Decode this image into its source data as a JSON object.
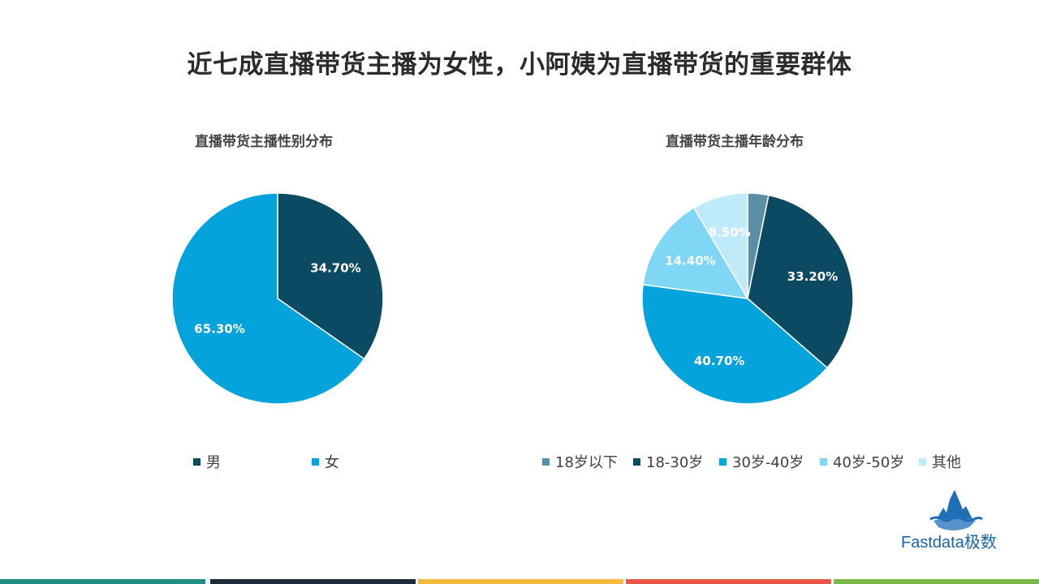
{
  "page": {
    "title": "近七成直播带货主播为女性，小阿姨为直播带货的重要群体"
  },
  "logo": {
    "text": "Fastdata极数",
    "icon": "iceberg-icon"
  },
  "colors": {
    "footer": [
      "#1f8f85",
      "#1e2b3c",
      "#f2b93b",
      "#ea5645",
      "#7ab648"
    ]
  },
  "chart_data": [
    {
      "type": "pie",
      "title": "直播带货主播性别分布",
      "slices": [
        {
          "label": "男",
          "value": 34.7,
          "display": "34.70%",
          "color": "#0c4a63"
        },
        {
          "label": "女",
          "value": 65.3,
          "display": "65.30%",
          "color": "#04a3dc"
        }
      ],
      "legend": [
        "男",
        "女"
      ],
      "legend_position": "bottom"
    },
    {
      "type": "pie",
      "title": "直播带货主播年龄分布",
      "slices": [
        {
          "label": "18岁以下",
          "value": 3.2,
          "display": "",
          "color": "#5a8fa6"
        },
        {
          "label": "18-30岁",
          "value": 33.2,
          "display": "33.20%",
          "color": "#0c4a63"
        },
        {
          "label": "30岁-40岁",
          "value": 40.7,
          "display": "40.70%",
          "color": "#04a3dc"
        },
        {
          "label": "40岁-50岁",
          "value": 14.4,
          "display": "14.40%",
          "color": "#7fd6f5"
        },
        {
          "label": "其他",
          "value": 8.5,
          "display": "8.50%",
          "color": "#bfeafa"
        }
      ],
      "legend": [
        "18岁以下",
        "18-30岁",
        "30岁-40岁",
        "40岁-50岁",
        "其他"
      ],
      "legend_position": "bottom"
    }
  ]
}
